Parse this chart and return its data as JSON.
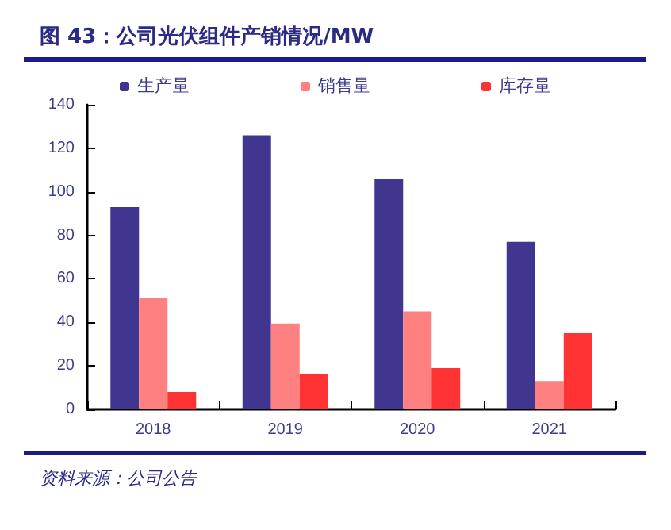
{
  "chart_data": {
    "type": "bar",
    "title": "图 43：公司光伏组件产销情况/MW",
    "categories": [
      "2018",
      "2019",
      "2020",
      "2021"
    ],
    "series": [
      {
        "name": "生产量",
        "color": "#41368f",
        "values": [
          93,
          126,
          106,
          77
        ]
      },
      {
        "name": "销售量",
        "color": "#ff8080",
        "values": [
          51,
          39.5,
          45,
          13
        ]
      },
      {
        "name": "库存量",
        "color": "#ff3333",
        "values": [
          8,
          16,
          19,
          35
        ]
      }
    ],
    "ylim": [
      0,
      140
    ],
    "yticks": [
      0,
      20,
      40,
      60,
      80,
      100,
      120,
      140
    ],
    "grid": false,
    "legend": "top",
    "annotations": [
      "资料来源：公司公告"
    ]
  }
}
